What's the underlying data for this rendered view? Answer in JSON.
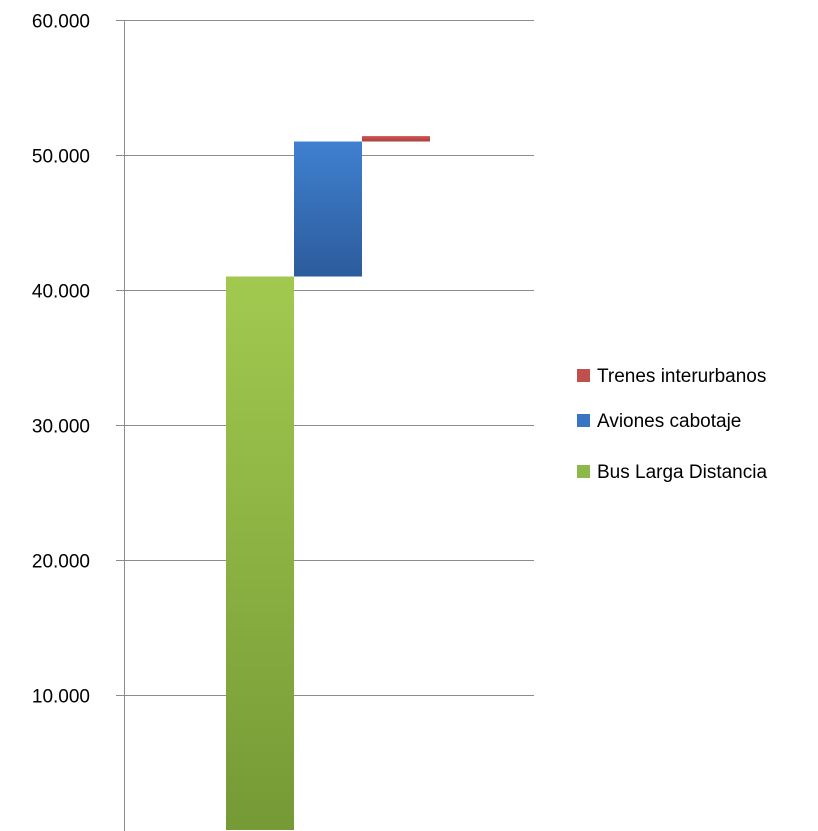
{
  "chart_data": {
    "type": "bar",
    "subtype": "waterfall-stacked",
    "title": "",
    "xlabel": "",
    "ylabel": "",
    "ylim": [
      0,
      60000
    ],
    "yticks": [
      {
        "value": 10000,
        "label": "10.000"
      },
      {
        "value": 20000,
        "label": "20.000"
      },
      {
        "value": 30000,
        "label": "30.000"
      },
      {
        "value": 40000,
        "label": "40.000"
      },
      {
        "value": 50000,
        "label": "50.000"
      },
      {
        "value": 60000,
        "label": "60.000"
      }
    ],
    "grid": true,
    "legend_position": "right",
    "series": [
      {
        "name": "Bus Larga Distancia",
        "base": 0,
        "value": 41000,
        "color": "#8db84a"
      },
      {
        "name": "Aviones cabotaje",
        "base": 41000,
        "value": 10000,
        "color": "#3a75c4"
      },
      {
        "name": "Trenes interurbanos",
        "base": 51000,
        "value": 400,
        "color": "#c0504d"
      }
    ],
    "legend_order": [
      "Trenes interurbanos",
      "Aviones cabotaje",
      "Bus Larga Distancia"
    ]
  }
}
